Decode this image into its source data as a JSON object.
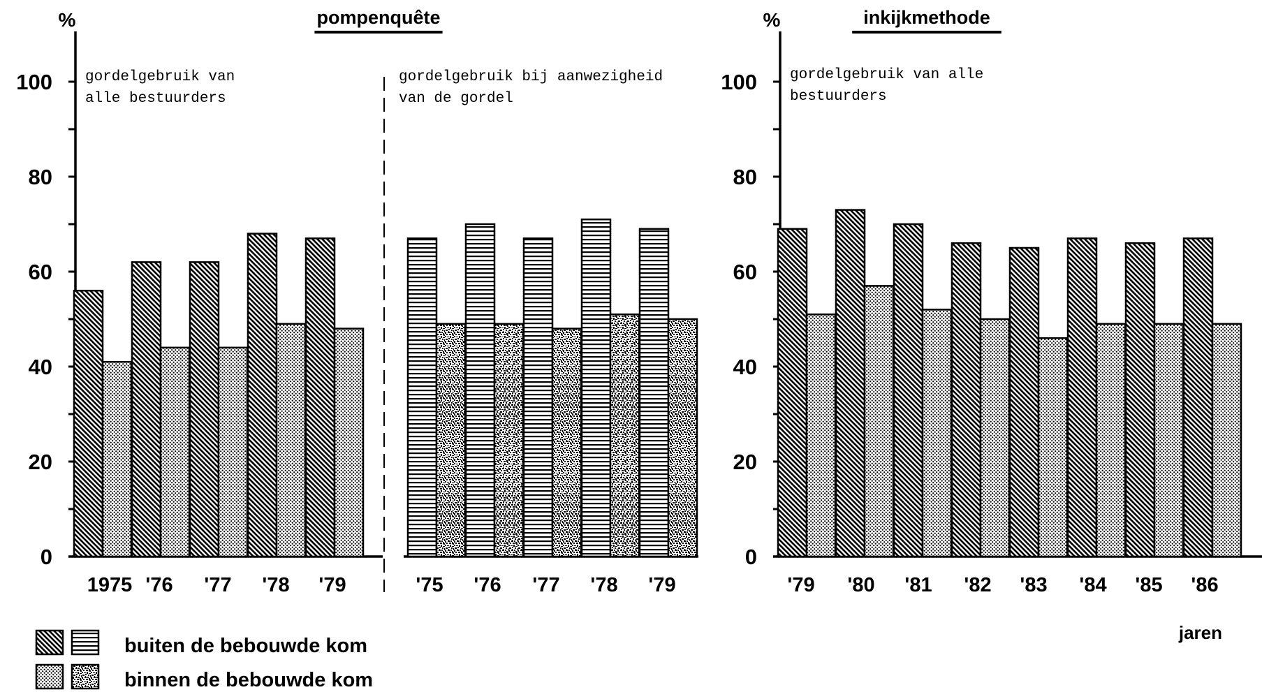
{
  "chart_data": [
    {
      "type": "bar",
      "panel_title": "pompenquête",
      "y_unit": "%",
      "ylim": [
        0,
        100
      ],
      "yticks": [
        0,
        20,
        40,
        60,
        80,
        100
      ],
      "subtitle": [
        "gordelgebruik van",
        "alle bestuurders"
      ],
      "categories": [
        "1975",
        "'76",
        "'77",
        "'78",
        "'79"
      ],
      "series": [
        {
          "name": "buiten de bebouwde kom",
          "pattern": "diagonal",
          "values": [
            56,
            62,
            62,
            68,
            67
          ]
        },
        {
          "name": "binnen de bebouwde kom",
          "pattern": "dots",
          "values": [
            41,
            44,
            44,
            49,
            48
          ]
        }
      ]
    },
    {
      "type": "bar",
      "subtitle": [
        "gordelgebruik bij aanwezigheid",
        "van de gordel"
      ],
      "categories": [
        "'75",
        "'76",
        "'77",
        "'78",
        "'79"
      ],
      "series": [
        {
          "name": "buiten de bebouwde kom",
          "pattern": "horizontal",
          "values": [
            67,
            70,
            67,
            71,
            69
          ]
        },
        {
          "name": "binnen de bebouwde kom",
          "pattern": "speckle",
          "values": [
            49,
            49,
            48,
            51,
            50
          ]
        }
      ]
    },
    {
      "type": "bar",
      "panel_title": "inkijkmethode",
      "y_unit": "%",
      "ylim": [
        0,
        100
      ],
      "yticks": [
        0,
        20,
        40,
        60,
        80,
        100
      ],
      "subtitle": [
        "gordelgebruik van alle",
        "bestuurders"
      ],
      "categories": [
        "'79",
        "'80",
        "'81",
        "'82",
        "'83",
        "'84",
        "'85",
        "'86"
      ],
      "xlabel": "jaren",
      "series": [
        {
          "name": "buiten de bebouwde kom",
          "pattern": "diagonal",
          "values": [
            69,
            73,
            70,
            66,
            65,
            67,
            66,
            67
          ]
        },
        {
          "name": "binnen de bebouwde kom",
          "pattern": "dots",
          "values": [
            51,
            57,
            52,
            50,
            46,
            49,
            49,
            49
          ]
        }
      ]
    }
  ],
  "legend": [
    {
      "label": "buiten de bebouwde kom",
      "patterns": [
        "diagonal",
        "horizontal"
      ]
    },
    {
      "label": "binnen de bebouwde kom",
      "patterns": [
        "dots",
        "speckle"
      ]
    }
  ]
}
